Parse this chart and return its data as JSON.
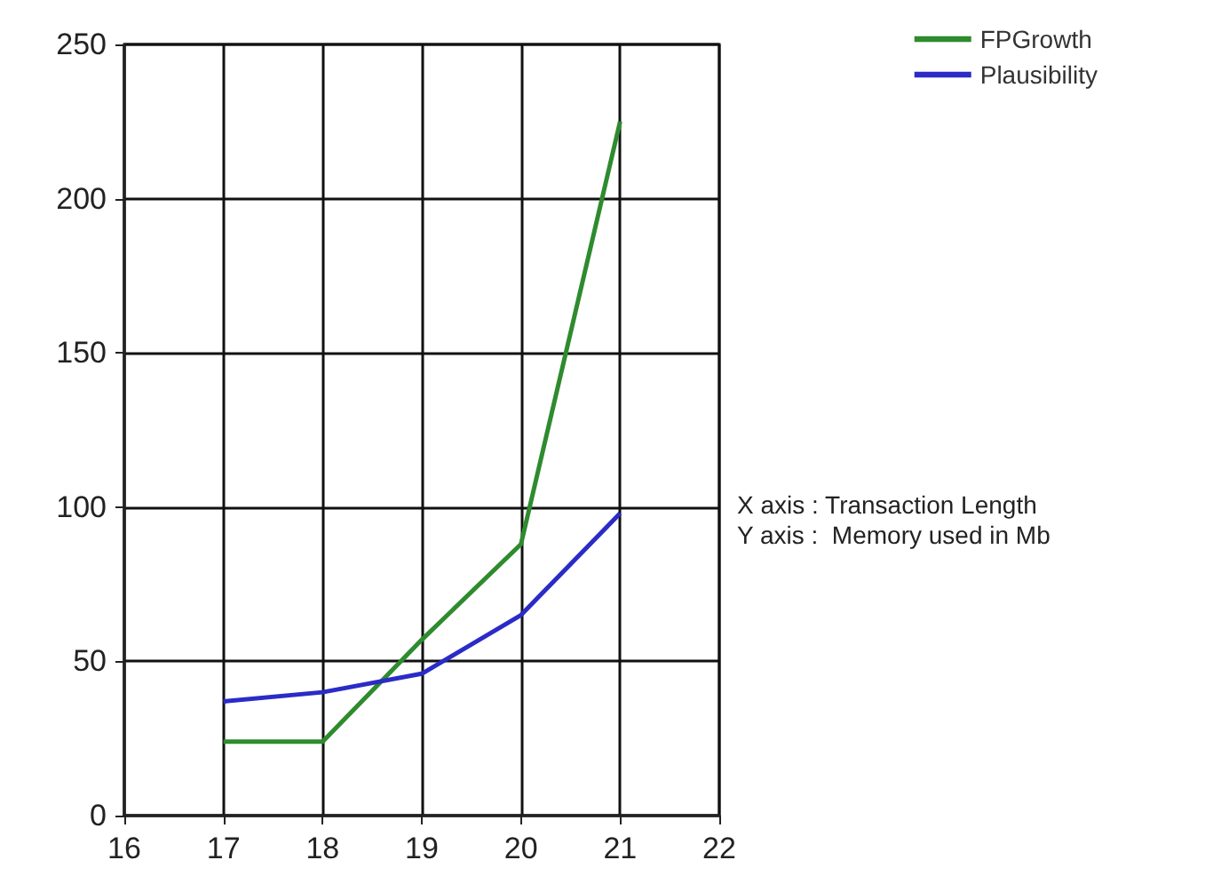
{
  "chart_data": {
    "type": "line",
    "x": [
      17,
      18,
      19,
      20,
      21
    ],
    "series": [
      {
        "name": "FPGrowth",
        "color": "#2e8b2e",
        "values": [
          24,
          24,
          57,
          88,
          225
        ]
      },
      {
        "name": "Plausibility",
        "color": "#2b2bc8",
        "values": [
          37,
          40,
          46,
          65,
          98
        ]
      }
    ],
    "xlim": [
      16,
      22
    ],
    "xticks": [
      16,
      17,
      18,
      19,
      20,
      21,
      22
    ],
    "ylim": [
      0,
      250
    ],
    "yticks": [
      0,
      50,
      100,
      150,
      200,
      250
    ],
    "grid": true,
    "legend": "top right",
    "marker": "none",
    "line_style": "solid",
    "annotations": [
      "X axis : Transaction Length",
      "Y axis :  Memory used in Mb"
    ]
  }
}
